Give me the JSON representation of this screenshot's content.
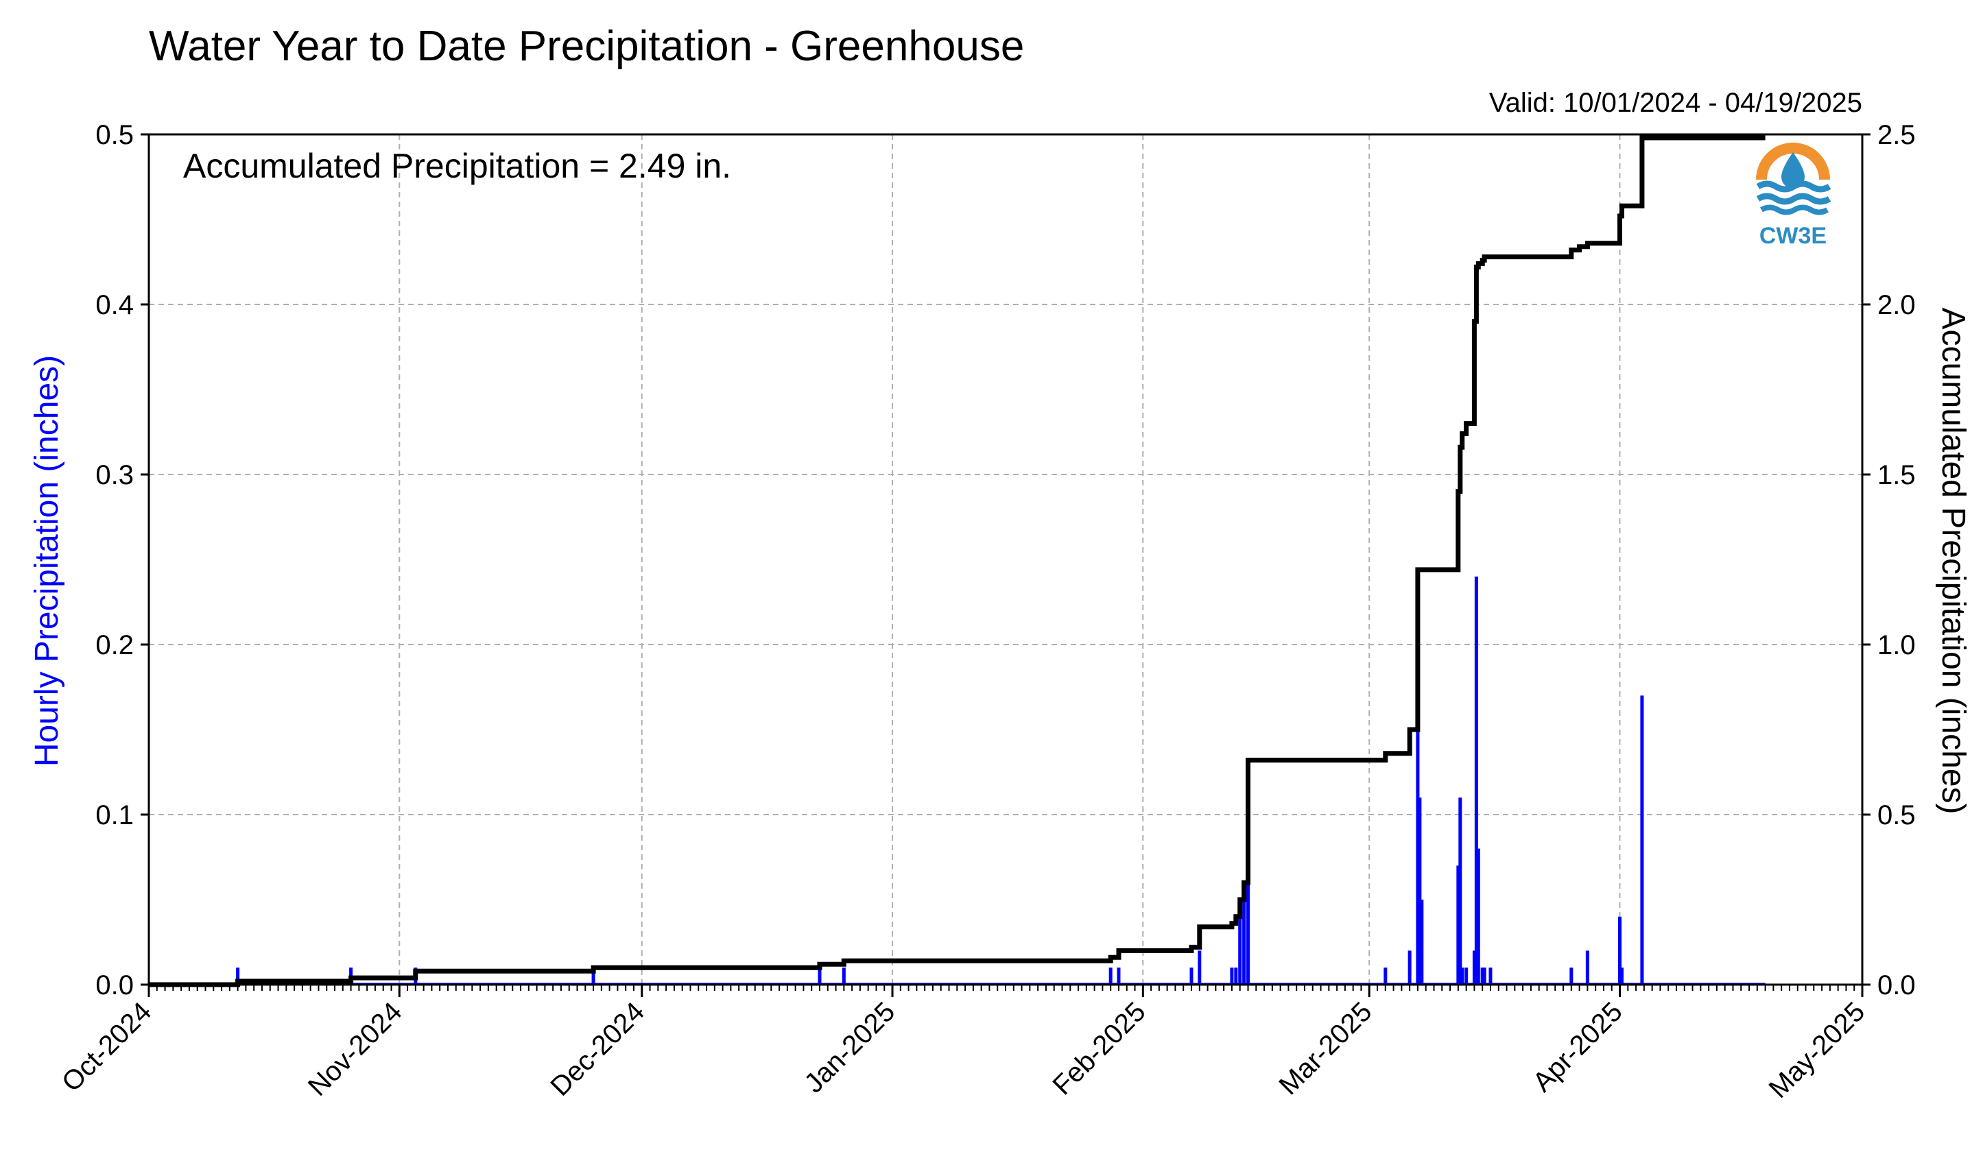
{
  "chart_data": {
    "type": "bar+line",
    "title": "Water Year to Date Precipitation - Greenhouse",
    "valid_text": "Valid: 10/01/2024 - 04/19/2025",
    "annotation": "Accumulated Precipitation = 2.49 in.",
    "ylabel_left": "Hourly Precipitation (inches)",
    "ylabel_right": "Accumulated Precipitation (inches)",
    "logo_text": "CW3E",
    "x_range": [
      "2024-10-01",
      "2025-05-01"
    ],
    "x_tick_labels": [
      {
        "date": "2024-10-01",
        "label": "Oct-2024"
      },
      {
        "date": "2024-11-01",
        "label": "Nov-2024"
      },
      {
        "date": "2024-12-01",
        "label": "Dec-2024"
      },
      {
        "date": "2025-01-01",
        "label": "Jan-2025"
      },
      {
        "date": "2025-02-01",
        "label": "Feb-2025"
      },
      {
        "date": "2025-03-01",
        "label": "Mar-2025"
      },
      {
        "date": "2025-04-01",
        "label": "Apr-2025"
      },
      {
        "date": "2025-05-01",
        "label": "May-2025"
      }
    ],
    "ylim_left": [
      0,
      0.5
    ],
    "ylim_right": [
      0,
      2.5
    ],
    "yticks_left": [
      "0.0",
      "0.1",
      "0.2",
      "0.3",
      "0.4",
      "0.5"
    ],
    "yticks_right": [
      "0.0",
      "0.5",
      "1.0",
      "1.5",
      "2.0",
      "2.5"
    ],
    "grid": true,
    "colors": {
      "hourly": "#0000ff",
      "accumulated": "#000000",
      "grid": "#b0b0b0",
      "logo_orange": "#f0922e",
      "logo_blue": "#2b8cc4"
    },
    "series": [
      {
        "kind": "bar",
        "axis": "left",
        "x": [
          "2024-10-12",
          "2024-10-26",
          "2024-11-03",
          "2024-11-25",
          "2024-12-23",
          "2024-12-26",
          "2025-01-28",
          "2025-01-29",
          "2025-02-07",
          "2025-02-08",
          "2025-02-12",
          "2025-02-12T12",
          "2025-02-13",
          "2025-02-13T12",
          "2025-02-14",
          "2025-03-03",
          "2025-03-06",
          "2025-03-07",
          "2025-03-07T06",
          "2025-03-07T12",
          "2025-03-12",
          "2025-03-12T06",
          "2025-03-12T12",
          "2025-03-13",
          "2025-03-14",
          "2025-03-14T06",
          "2025-03-14T12",
          "2025-03-15",
          "2025-03-15T06",
          "2025-03-16",
          "2025-03-26",
          "2025-03-28",
          "2025-04-01",
          "2025-04-01T06",
          "2025-04-03T18"
        ],
        "values": [
          0.01,
          0.01,
          0.01,
          0.01,
          0.01,
          0.01,
          0.01,
          0.01,
          0.01,
          0.02,
          0.01,
          0.01,
          0.04,
          0.05,
          0.06,
          0.01,
          0.02,
          0.15,
          0.11,
          0.05,
          0.07,
          0.11,
          0.01,
          0.01,
          0.02,
          0.24,
          0.08,
          0.01,
          0.01,
          0.01,
          0.01,
          0.02,
          0.04,
          0.01,
          0.17
        ]
      },
      {
        "kind": "line",
        "axis": "right",
        "step": true,
        "x": [
          "2024-10-01",
          "2024-10-12",
          "2024-10-26",
          "2024-11-03",
          "2024-11-25",
          "2024-12-23",
          "2024-12-26",
          "2025-01-28",
          "2025-01-29",
          "2025-02-07",
          "2025-02-08",
          "2025-02-12",
          "2025-02-12T12",
          "2025-02-13",
          "2025-02-13T12",
          "2025-02-14",
          "2025-03-03",
          "2025-03-06",
          "2025-03-07",
          "2025-03-07T12",
          "2025-03-12",
          "2025-03-12T06",
          "2025-03-12T12",
          "2025-03-13",
          "2025-03-14",
          "2025-03-14T06",
          "2025-03-14T12",
          "2025-03-15",
          "2025-03-15T06",
          "2025-03-26",
          "2025-03-27",
          "2025-03-28",
          "2025-04-01",
          "2025-04-01T06",
          "2025-04-03T18",
          "2025-04-19"
        ],
        "values": [
          0.0,
          0.01,
          0.02,
          0.04,
          0.05,
          0.06,
          0.07,
          0.08,
          0.1,
          0.11,
          0.17,
          0.18,
          0.2,
          0.25,
          0.3,
          0.66,
          0.68,
          0.75,
          1.22,
          1.22,
          1.45,
          1.58,
          1.62,
          1.65,
          1.95,
          2.11,
          2.12,
          2.13,
          2.14,
          2.16,
          2.17,
          2.18,
          2.26,
          2.29,
          2.49,
          2.49
        ]
      }
    ]
  }
}
